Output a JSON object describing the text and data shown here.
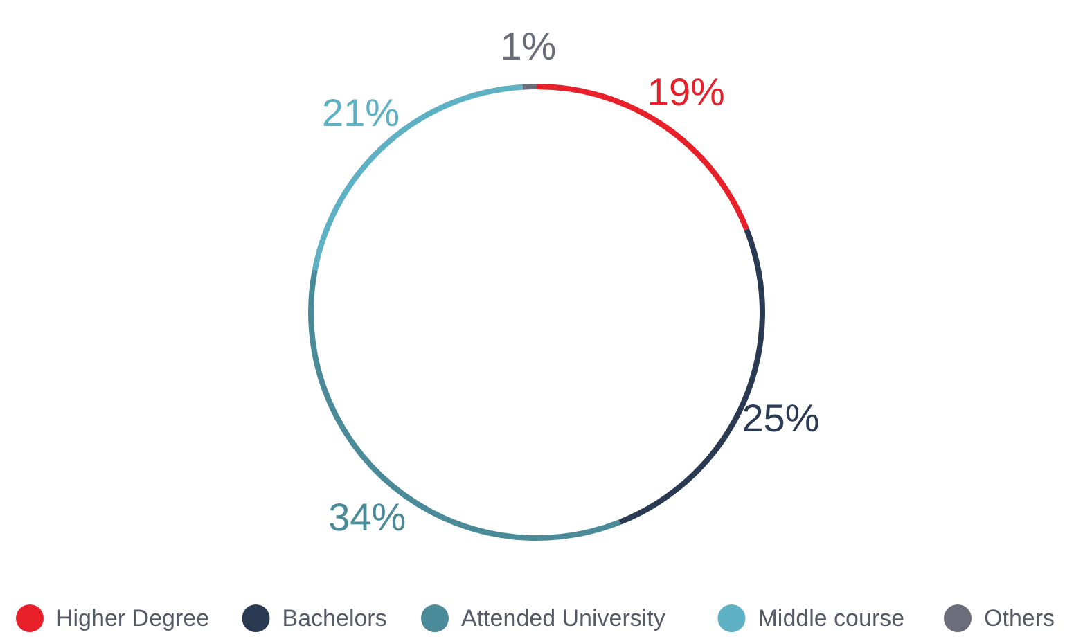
{
  "chart_data": {
    "type": "donut",
    "categories": [
      "Higher Degree",
      "Bachelors",
      "Attended University",
      "Middle course",
      "Others"
    ],
    "values": [
      19,
      25,
      34,
      21,
      1
    ],
    "colors": [
      "#e8202a",
      "#2a3a52",
      "#4a8a99",
      "#5eb0c4",
      "#6b6e7a"
    ],
    "value_labels": [
      "19%",
      "25%",
      "34%",
      "21%",
      "1%"
    ],
    "legend": "bottom"
  }
}
